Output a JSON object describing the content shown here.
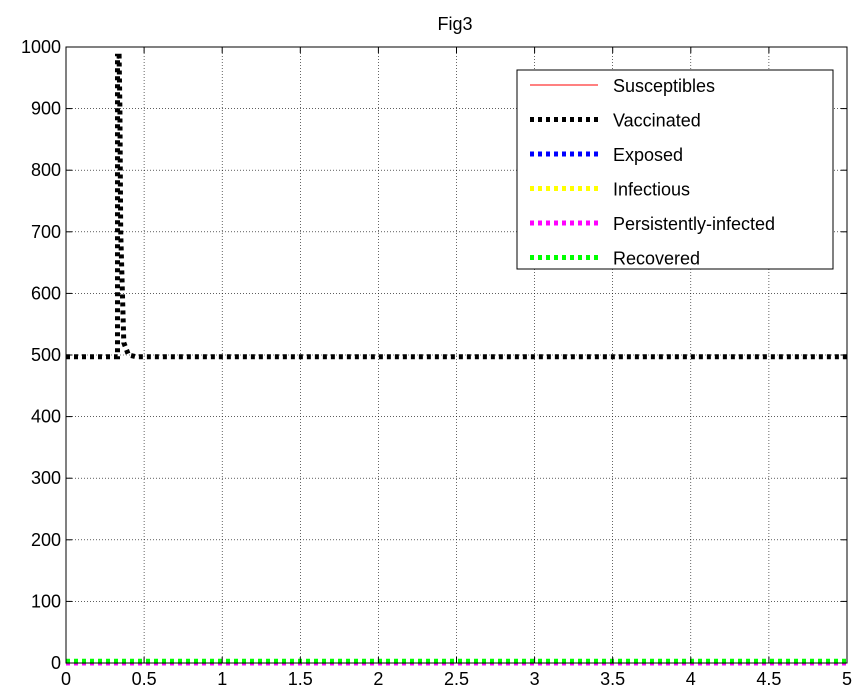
{
  "chart_data": {
    "type": "line",
    "title": "Fig3",
    "xlabel": "",
    "ylabel": "",
    "xlim": [
      0,
      5
    ],
    "ylim": [
      0,
      1000
    ],
    "xticks": [
      0,
      0.5,
      1,
      1.5,
      2,
      2.5,
      3,
      3.5,
      4,
      4.5,
      5
    ],
    "xtick_labels": [
      "0",
      "0.5",
      "1",
      "1.5",
      "2",
      "2.5",
      "3",
      "3.5",
      "4",
      "4.5",
      "5"
    ],
    "yticks": [
      0,
      100,
      200,
      300,
      400,
      500,
      600,
      700,
      800,
      900,
      1000
    ],
    "ytick_labels": [
      "0",
      "100",
      "200",
      "300",
      "400",
      "500",
      "600",
      "700",
      "800",
      "900",
      "1000"
    ],
    "grid": true,
    "legend_position": "top-right",
    "series": [
      {
        "name": "Susceptibles",
        "color": "#ff0000",
        "style": "solid-thin",
        "x": [
          0,
          5
        ],
        "y": [
          0,
          0
        ]
      },
      {
        "name": "Vaccinated",
        "color": "#000000",
        "style": "dotted-thick",
        "x": [
          0,
          0.33,
          0.33,
          0.34,
          0.345,
          0.35,
          0.37,
          0.4,
          0.45,
          5
        ],
        "y": [
          497,
          497,
          985,
          985,
          900,
          700,
          520,
          500,
          497,
          497
        ]
      },
      {
        "name": "Exposed",
        "color": "#0000ff",
        "style": "dotted-thick",
        "x": [
          0,
          5
        ],
        "y": [
          0,
          0
        ]
      },
      {
        "name": "Infectious",
        "color": "#ffff00",
        "style": "dotted-thick",
        "x": [
          0,
          5
        ],
        "y": [
          0,
          0
        ]
      },
      {
        "name": "Persistently-infected",
        "color": "#ff00ff",
        "style": "dotted-thick",
        "x": [
          0,
          5
        ],
        "y": [
          0,
          0
        ]
      },
      {
        "name": "Recovered",
        "color": "#00ff00",
        "style": "dotted-thick",
        "x": [
          0,
          5
        ],
        "y": [
          3,
          3
        ]
      }
    ]
  }
}
